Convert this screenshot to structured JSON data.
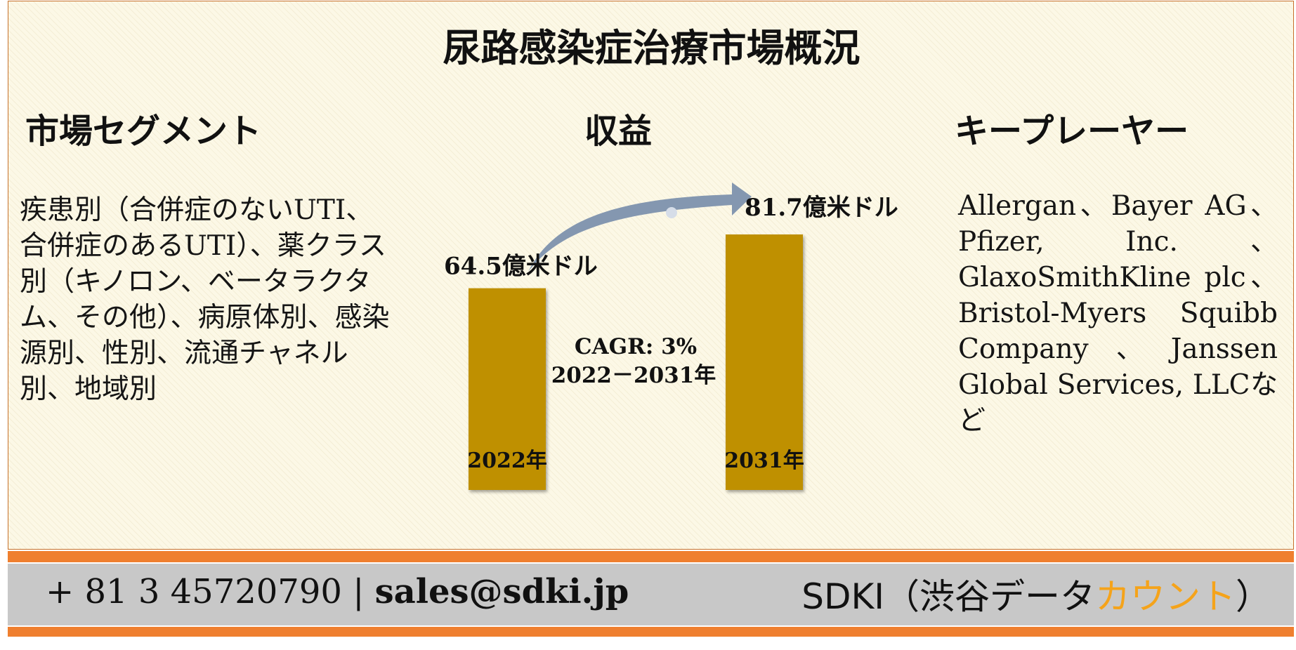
{
  "header": {
    "title": "尿路感染症治療市場概況"
  },
  "sections": {
    "segment_heading": "市場セグメント",
    "revenue_heading": "収益",
    "players_heading": "キープレーヤー"
  },
  "segments_text": "疾患別（合併症のないUTI、合併症のあるUTI）、薬クラス別（キノロン、ベータラクタム、その他）、病原体別、感染源別、性別、流通チャネル別、地域別",
  "players_text": "Allergan、Bayer AG、Pfizer, Inc.、GlaxoSmithKline plc、Bristol-Myers Squibb Company、Janssen Global Services, LLCなど",
  "chart_data": {
    "type": "bar",
    "categories": [
      "2022年",
      "2031年"
    ],
    "values": [
      64.5,
      81.7
    ],
    "value_labels": [
      "64.5億米ドル",
      "81.7億米ドル"
    ],
    "annotation_line1": "CAGR: 3%",
    "annotation_line2": "2022－2031年",
    "bar_color": "#bf9000",
    "arrow_color": "#8497b0"
  },
  "footer": {
    "phone": "+ 81 3 45720790",
    "separator": "|",
    "email": "sales@sdki.jp",
    "brand_main": "SDKI（渋谷データ",
    "brand_accent": "カウント",
    "brand_end": "）",
    "accent_color": "#f5a31a",
    "bar_color": "#ef7f2f"
  }
}
